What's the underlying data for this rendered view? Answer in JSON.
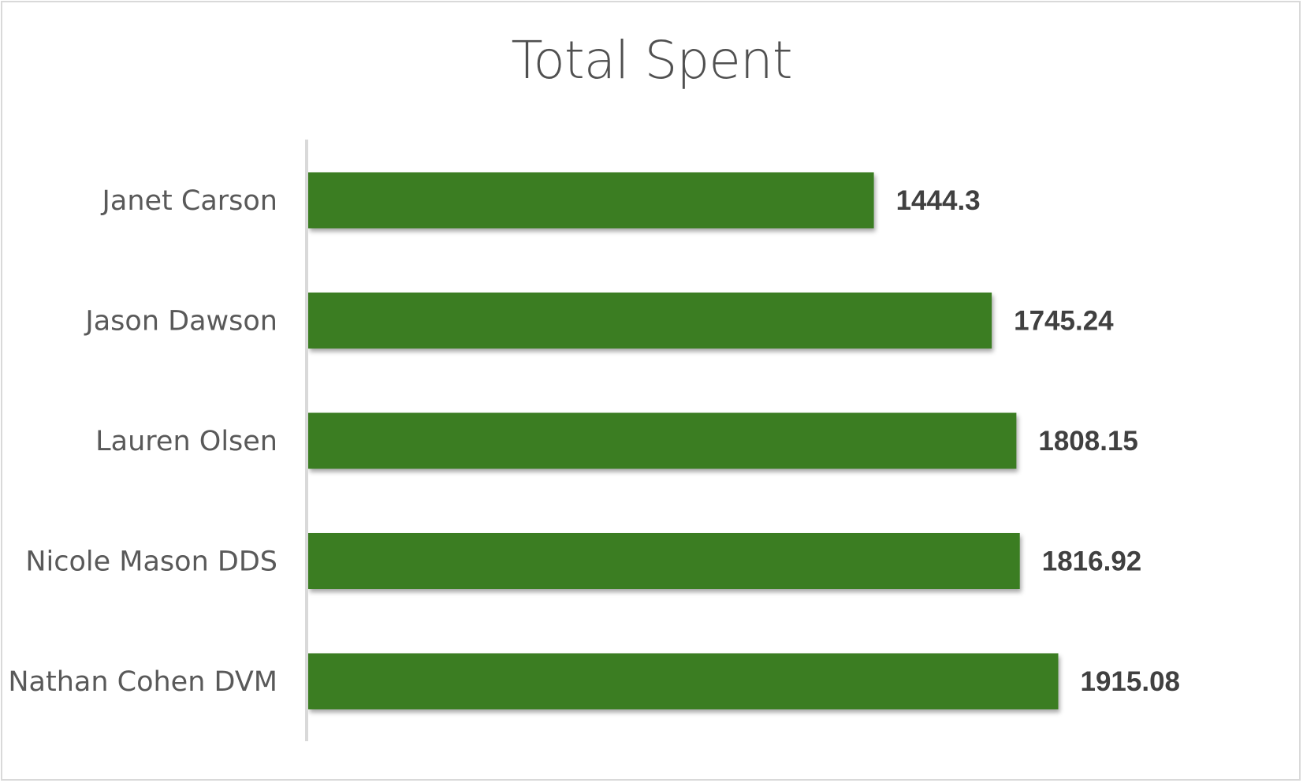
{
  "chart_data": {
    "type": "bar",
    "orientation": "horizontal",
    "title": "Total Spent",
    "categories": [
      "Janet Carson",
      "Jason Dawson",
      "Lauren Olsen",
      "Nicole Mason DDS",
      "Nathan Cohen DVM"
    ],
    "values": [
      1444.3,
      1745.24,
      1808.15,
      1816.92,
      1915.08
    ],
    "value_labels": [
      "1444.3",
      "1745.24",
      "1808.15",
      "1816.92",
      "1915.08"
    ],
    "xlim": [
      0,
      2540
    ],
    "xlabel": "",
    "ylabel": "",
    "grid": false,
    "legend": "none",
    "bar_color": "#3b7d23",
    "data_labels": true
  }
}
